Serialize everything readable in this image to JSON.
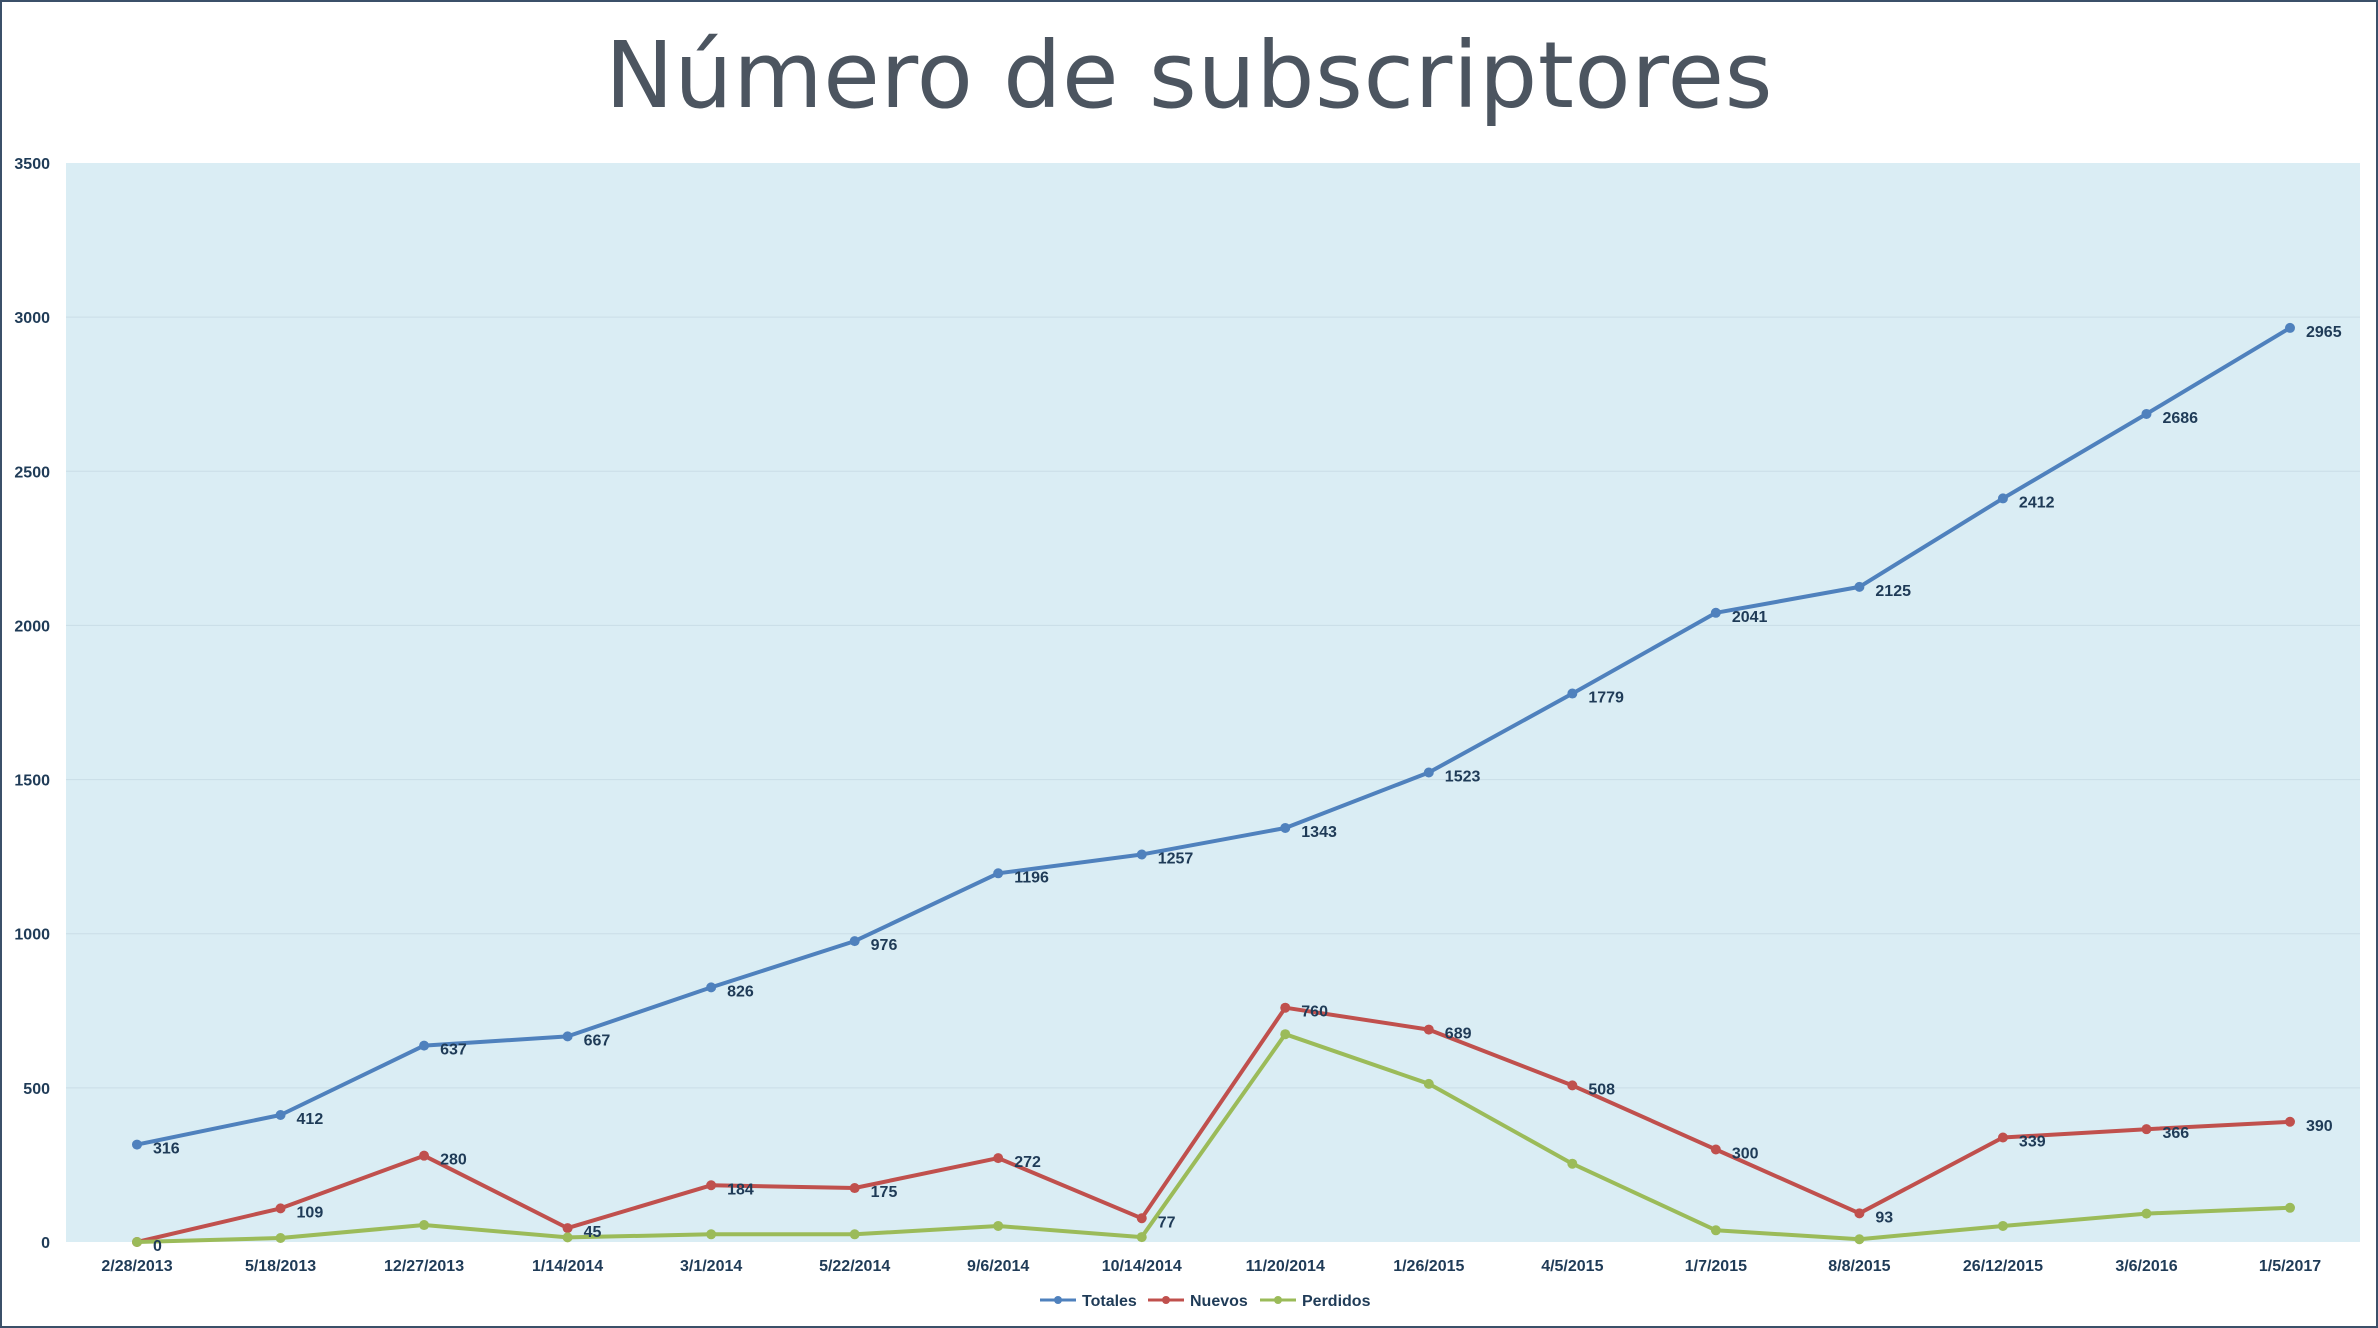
{
  "chart_data": {
    "type": "line",
    "title": "Número de subscriptores",
    "xlabel": "",
    "ylabel": "",
    "ylim": [
      0,
      3500
    ],
    "yticks": [
      0,
      500,
      1000,
      1500,
      2000,
      2500,
      3000,
      3500
    ],
    "grid": true,
    "legend_position": "bottom",
    "plot_background": "#daedf4",
    "categories": [
      "2/28/2013",
      "5/18/2013",
      "12/27/2013",
      "1/14/2014",
      "3/1/2014",
      "5/22/2014",
      "9/6/2014",
      "10/14/2014",
      "11/20/2014",
      "1/26/2015",
      "4/5/2015",
      "1/7/2015",
      "8/8/2015",
      "26/12/2015",
      "3/6/2016",
      "1/5/2017"
    ],
    "series": [
      {
        "name": "Totales",
        "color": "#4f81bd",
        "values": [
          316,
          412,
          637,
          667,
          826,
          976,
          1196,
          1257,
          1343,
          1523,
          1779,
          2041,
          2125,
          2412,
          2686,
          2965
        ],
        "labels": [
          "316",
          "412",
          "637",
          "667",
          "826",
          "976",
          "1196",
          "1257",
          "1343",
          "1523",
          "1779",
          "2041",
          "2125",
          "2412",
          "2686",
          "2965"
        ]
      },
      {
        "name": "Nuevos",
        "color": "#c0504d",
        "values": [
          0,
          109,
          280,
          45,
          184,
          175,
          272,
          77,
          760,
          689,
          508,
          300,
          93,
          339,
          366,
          390
        ],
        "labels": [
          "0",
          "109",
          "280",
          "45",
          "184",
          "175",
          "272",
          "77",
          "760",
          "689",
          "508",
          "300",
          "93",
          "339",
          "366",
          "390"
        ]
      },
      {
        "name": "Perdidos",
        "color": "#9bbb59",
        "values": [
          0,
          13,
          55,
          15,
          25,
          25,
          52,
          16,
          674,
          513,
          254,
          38,
          9,
          52,
          92,
          111
        ],
        "labels": null
      }
    ]
  }
}
